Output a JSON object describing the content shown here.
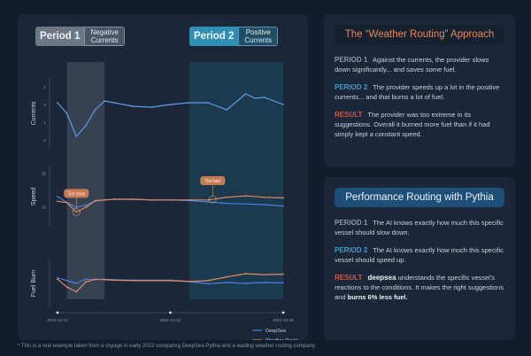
{
  "left": {
    "period1": {
      "label": "Period 1",
      "sub1": "Negative",
      "sub2": "Currents"
    },
    "period2": {
      "label": "Period 2",
      "sub1": "Positive",
      "sub2": "Currents"
    }
  },
  "right": {
    "card1": {
      "title": "The “Weather  Routing” Approach",
      "p1_tag": "PERIOD 1",
      "p1_text": "Against the currents, the provider slows down significantly... and saves some fuel.",
      "p2_tag": "PERIOD 2",
      "p2_text": "The provider speeds up a lot in the positive currents... and that burns a lot of fuel.",
      "p3_tag": "RESULT",
      "p3_text": "The provider was too extreme in its suggestions. Overall it burned more fuel than if it had simply kept a constant speed."
    },
    "card2": {
      "title": "Performance Routing with Pythia",
      "p1_tag": "PERIOD 1",
      "p1_text": "The AI knows exactly how much this specific vessel should slow down.",
      "p2_tag": "PERIOD 2",
      "p2_text": "The AI knows exactly how much this specific vessel should speed up.",
      "p3_tag": "RESULT",
      "p3_brand": "deepsea",
      "p3_text": "understands the specific vessel's reactions to the conditions. It makes the right suggestions and",
      "p3_bold": "burns 6% less fuel."
    }
  },
  "footnote": "* This is a real example taken from a voyage in early 2022 comparing DeepSea Pythia and a leading weather routing company.",
  "chart_data": {
    "type": "line",
    "x": [
      0,
      1,
      2,
      3,
      4,
      5,
      6,
      7,
      8,
      9,
      10,
      11,
      12,
      13,
      14,
      15,
      16,
      17,
      18,
      19,
      20,
      21,
      22,
      23,
      24
    ],
    "x_ticks": [
      "2021-12-13",
      "2021-12-16",
      "2021-12-18"
    ],
    "x_tick_pos": [
      0,
      12,
      24
    ],
    "periods": [
      [
        1,
        5
      ],
      [
        14,
        24
      ]
    ],
    "colors": {
      "deepsea": "#4b7fe3",
      "weather": "#e38a61",
      "currents": "#5f9ce8"
    },
    "legend": [
      "DeepSea",
      "Weather Route"
    ],
    "panels": [
      {
        "ylabel": "Currents",
        "ylim": [
          -2.5,
          1.5
        ],
        "ticks": [
          1,
          0,
          -1,
          -2
        ],
        "series": [
          {
            "name": "currents",
            "x": [
              0,
              1,
              2,
              3,
              4,
              5,
              6,
              8,
              10,
              12,
              14,
              16,
              18,
              20,
              21,
              22,
              24
            ],
            "y": [
              0.1,
              -0.5,
              -1.8,
              -1.2,
              -0.3,
              0.2,
              0.1,
              -0.1,
              -0.15,
              0.0,
              0.1,
              0.1,
              -0.3,
              0.6,
              0.35,
              0.4,
              0.0
            ]
          }
        ]
      },
      {
        "ylabel": "Speed",
        "ylim": [
          12,
          21
        ],
        "ticks": [
          20,
          15
        ],
        "series": [
          {
            "name": "DeepSea",
            "x": [
              0,
              1,
              2,
              3,
              4,
              5,
              6,
              8,
              10,
              12,
              14,
              16,
              18,
              20,
              22,
              24
            ],
            "y": [
              16.5,
              15.6,
              14.9,
              15.2,
              15.8,
              16.0,
              16.1,
              16.1,
              16.0,
              16.0,
              15.9,
              15.7,
              15.5,
              15.4,
              15.3,
              15.1
            ]
          },
          {
            "name": "Weather Route",
            "x": [
              0,
              1,
              2,
              3,
              4,
              5,
              6,
              8,
              10,
              12,
              14,
              16,
              18,
              20,
              22,
              24
            ],
            "y": [
              15.8,
              15.6,
              14.2,
              14.9,
              15.9,
              16.0,
              16.1,
              16.1,
              16.0,
              16.0,
              16.0,
              16.0,
              16.4,
              16.6,
              16.4,
              16.3
            ]
          }
        ],
        "annotations": [
          {
            "text": "Too slow",
            "x": 2.0
          },
          {
            "text": "Too fast",
            "x": 16.5
          }
        ]
      },
      {
        "ylabel": "Fuel Burn",
        "ylim": [
          0,
          10
        ],
        "ticks": [],
        "series": [
          {
            "name": "DeepSea",
            "x": [
              0,
              1,
              2,
              3,
              4,
              5,
              6,
              8,
              10,
              12,
              14,
              16,
              18,
              20,
              22,
              24
            ],
            "y": [
              6.2,
              5.6,
              5.0,
              5.9,
              5.8,
              5.9,
              5.8,
              5.7,
              5.7,
              5.7,
              5.4,
              4.9,
              5.2,
              5.0,
              5.2,
              5.1
            ]
          },
          {
            "name": "Weather Route",
            "x": [
              0,
              1,
              2,
              3,
              4,
              5,
              6,
              8,
              10,
              12,
              14,
              16,
              18,
              20,
              22,
              24
            ],
            "y": [
              5.9,
              4.2,
              3.2,
              5.3,
              5.9,
              5.8,
              5.7,
              5.6,
              5.6,
              5.6,
              5.4,
              5.6,
              6.4,
              7.1,
              6.9,
              7.0
            ]
          }
        ]
      }
    ]
  }
}
